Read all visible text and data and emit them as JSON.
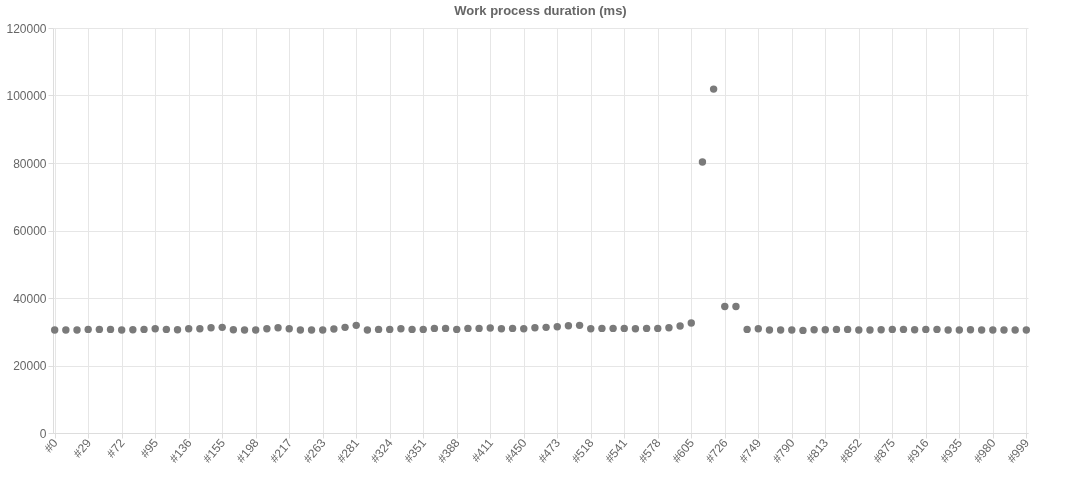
{
  "chart_data": {
    "type": "scatter",
    "title": "Work process duration (ms)",
    "categories": [
      "#0",
      null,
      null,
      "#29",
      null,
      null,
      "#72",
      null,
      null,
      "#95",
      null,
      null,
      "#136",
      null,
      null,
      "#155",
      null,
      null,
      "#198",
      null,
      null,
      "#217",
      null,
      null,
      "#263",
      null,
      null,
      "#281",
      null,
      null,
      "#324",
      null,
      null,
      "#351",
      null,
      null,
      "#388",
      null,
      null,
      "#411",
      null,
      null,
      "#450",
      null,
      null,
      "#473",
      null,
      null,
      "#518",
      null,
      null,
      "#541",
      null,
      null,
      "#578",
      null,
      null,
      "#605",
      null,
      null,
      "#726",
      null,
      null,
      "#749",
      null,
      null,
      "#790",
      null,
      null,
      "#813",
      null,
      null,
      "#852",
      null,
      null,
      "#875",
      null,
      null,
      "#916",
      null,
      null,
      "#935",
      null,
      null,
      "#980",
      null,
      null,
      "#999"
    ],
    "series": [
      {
        "color": "#7a7a7a",
        "values": [
          30500,
          30500,
          30500,
          30700,
          30700,
          30700,
          30500,
          30600,
          30700,
          30900,
          30700,
          30600,
          30900,
          30900,
          31200,
          31300,
          30600,
          30500,
          30500,
          30900,
          31200,
          30900,
          30500,
          30500,
          30500,
          30800,
          31300,
          31900,
          30500,
          30700,
          30700,
          30900,
          30700,
          30700,
          31000,
          31000,
          30700,
          31000,
          31000,
          31100,
          30900,
          31000,
          30900,
          31200,
          31300,
          31500,
          31800,
          31900,
          30900,
          31000,
          31000,
          31000,
          30900,
          31000,
          31000,
          31200,
          31700,
          32600,
          80300,
          101900,
          37500,
          37500,
          30700,
          30900,
          30500,
          30500,
          30500,
          30400,
          30600,
          30600,
          30700,
          30700,
          30500,
          30500,
          30600,
          30700,
          30700,
          30600,
          30700,
          30700,
          30500,
          30500,
          30600,
          30500,
          30500,
          30500,
          30500,
          30500
        ]
      }
    ],
    "ylim": [
      0,
      120000
    ],
    "yticks": [
      0,
      20000,
      40000,
      60000,
      80000,
      100000,
      120000
    ],
    "grid": true,
    "legend": false,
    "marker": "circle"
  }
}
